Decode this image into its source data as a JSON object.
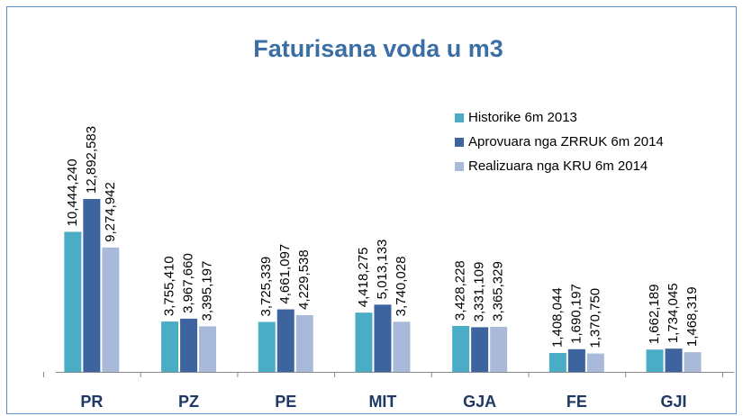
{
  "chart_data": {
    "type": "bar",
    "title": "Faturisana voda u m3",
    "categories": [
      "PR",
      "PZ",
      "PE",
      "MIT",
      "GJA",
      "FE",
      "GJI"
    ],
    "series": [
      {
        "name": "Historike 6m 2013",
        "color": "#4BACC6",
        "values": [
          10444240,
          3755410,
          3725339,
          4418275,
          3428228,
          1408044,
          1662189
        ],
        "value_labels": [
          "10,444,240",
          "3,755,410",
          "3,725,339",
          "4,418,275",
          "3,428,228",
          "1,408,044",
          "1,662,189"
        ]
      },
      {
        "name": "Aprovuara nga ZRRUK 6m 2014",
        "color": "#3E64A0",
        "values": [
          12892583,
          3967660,
          4661097,
          5013133,
          3331109,
          1690197,
          1734045
        ],
        "value_labels": [
          "12,892,583",
          "3,967,660",
          "4,661,097",
          "5,013,133",
          "3,331,109",
          "1,690,197",
          "1,734,045"
        ]
      },
      {
        "name": "Realizuara nga KRU 6m 2014",
        "color": "#A9B9DA",
        "values": [
          9274942,
          3395197,
          4229538,
          3740028,
          3365329,
          1370750,
          1468319
        ],
        "value_labels": [
          "9,274,942",
          "3,395,197",
          "4,229,538",
          "3,740,028",
          "3,365,329",
          "1,370,750",
          "1,468,319"
        ]
      }
    ],
    "legend": "upper right"
  }
}
